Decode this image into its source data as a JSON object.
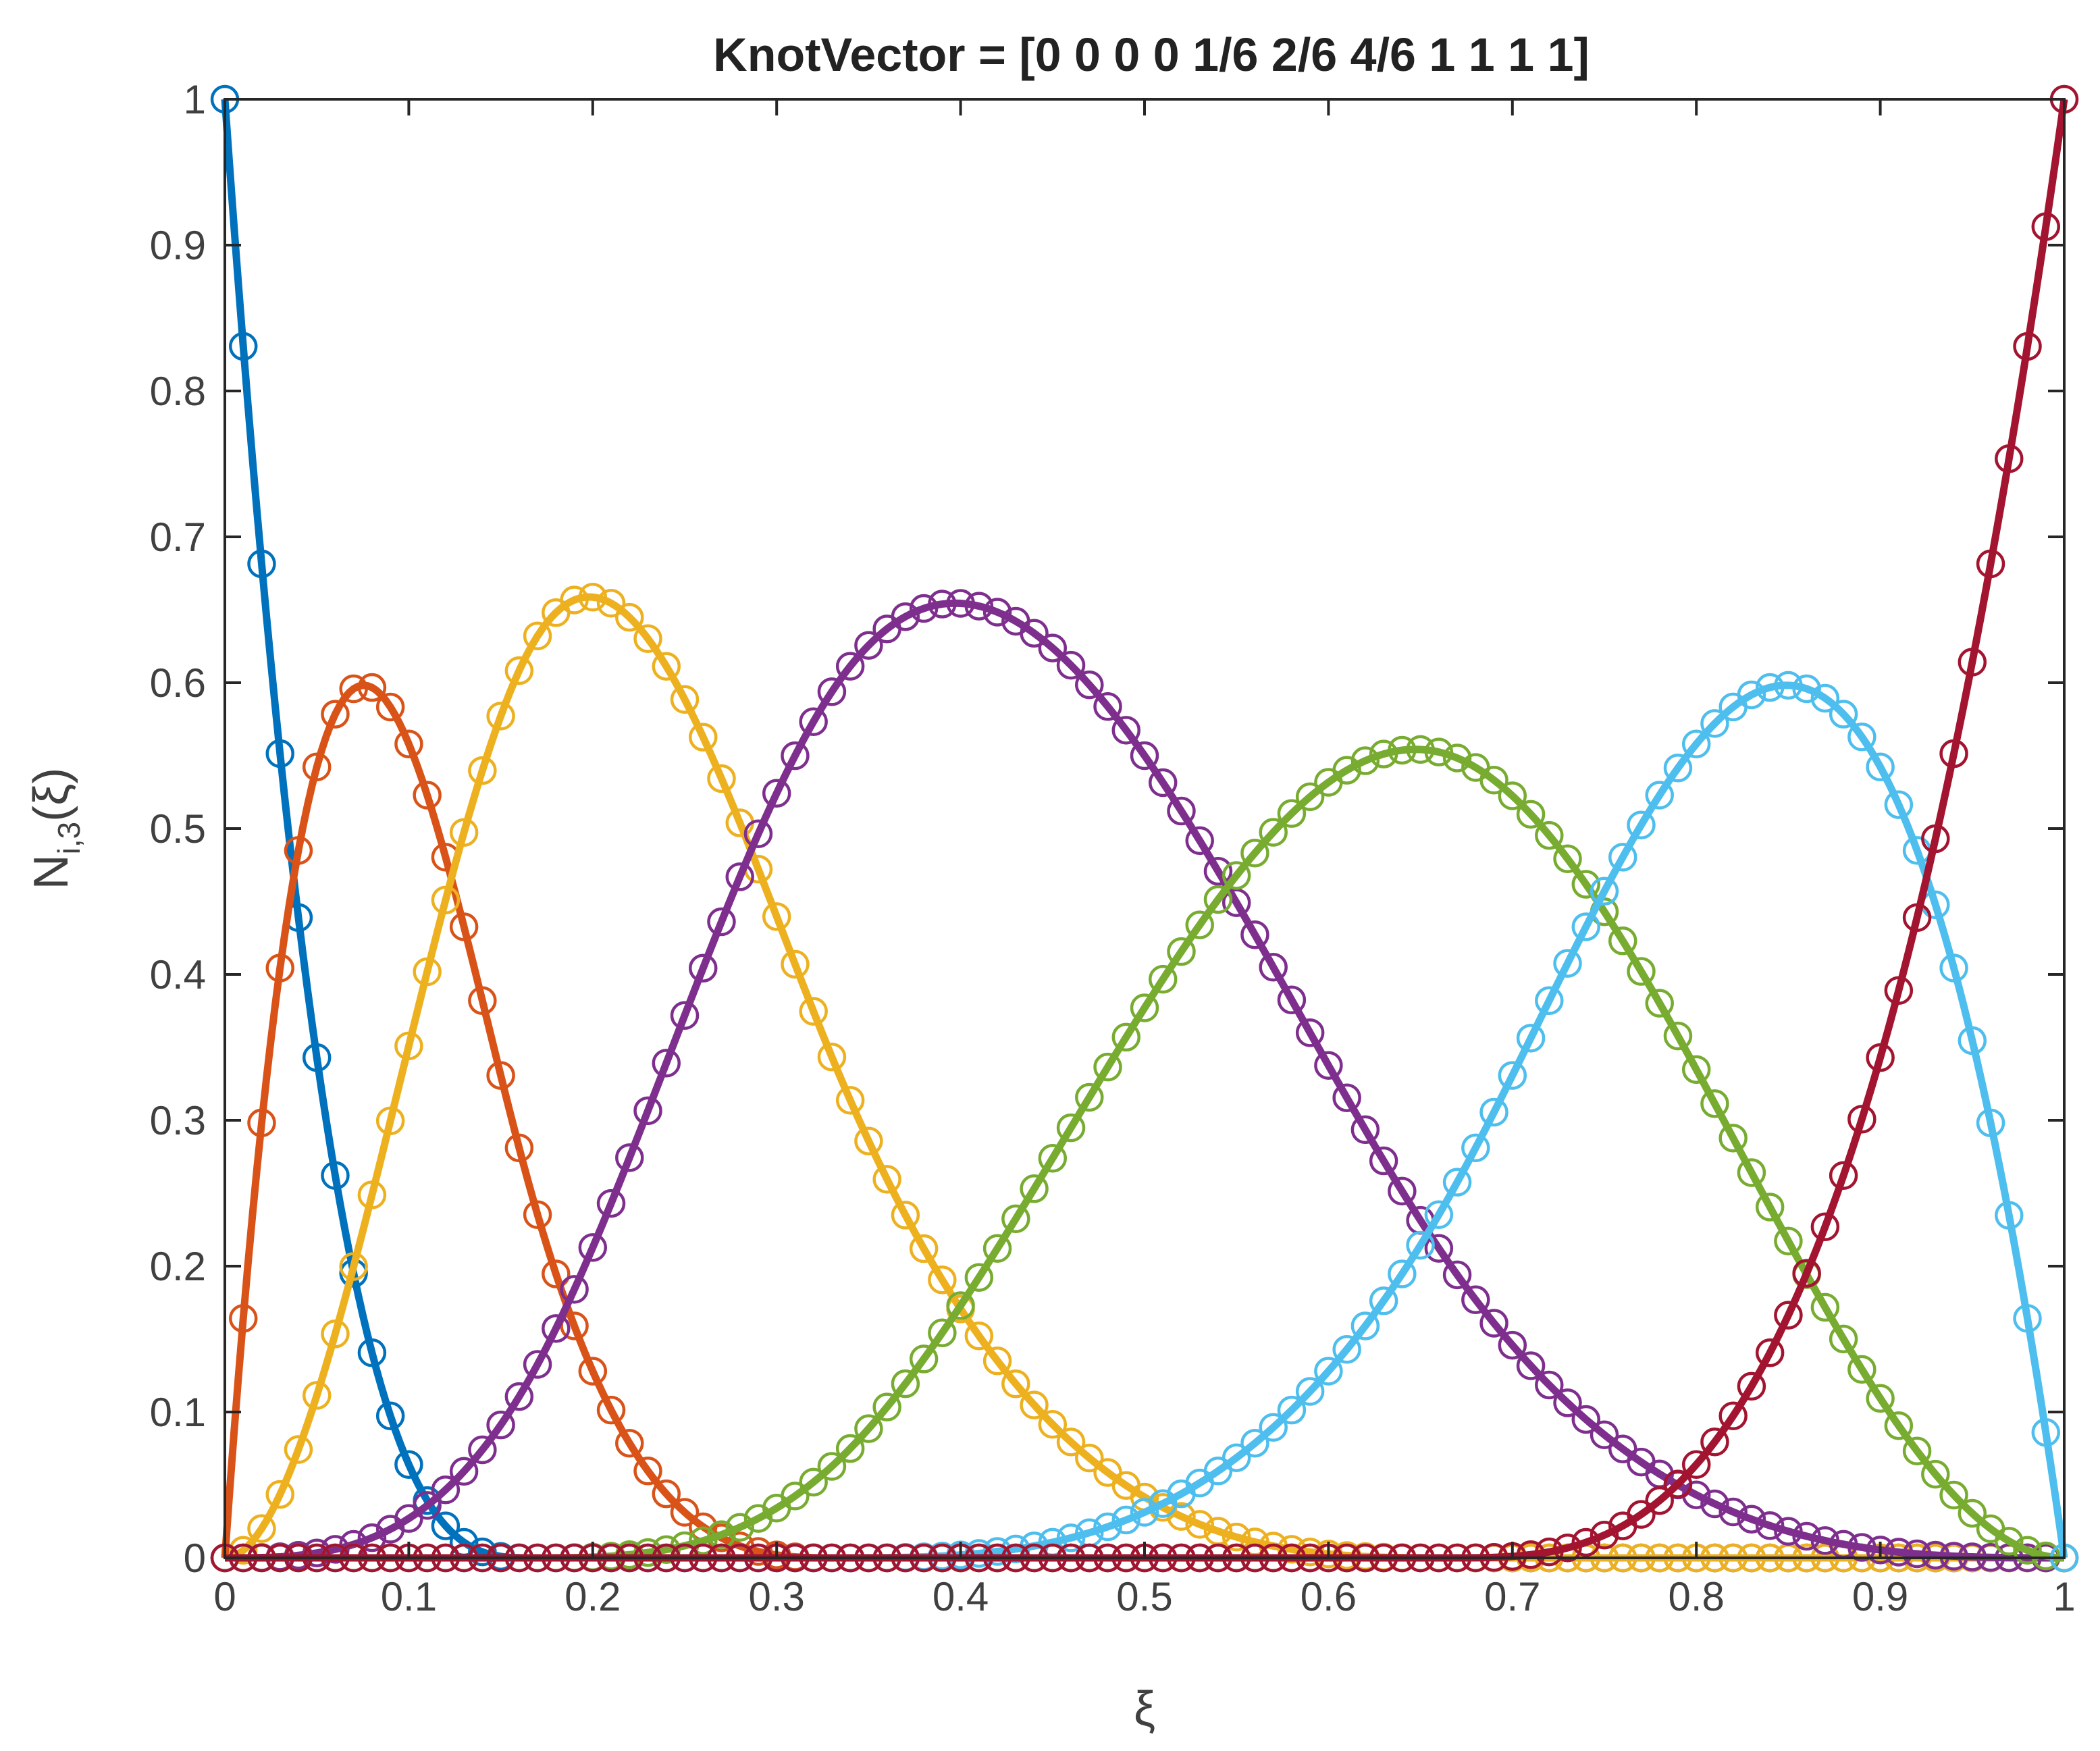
{
  "chart_data": {
    "type": "line",
    "title": "KnotVector = [0 0 0 0 1/6 2/6 4/6 1 1 1 1]",
    "xlabel": "ξ",
    "ylabel": {
      "main": "N",
      "sub": "i,3",
      "suffix": "(ξ)"
    },
    "xlim": [
      0,
      1
    ],
    "ylim": [
      0,
      1
    ],
    "xticks": [
      "0",
      "0.1",
      "0.2",
      "0.3",
      "0.4",
      "0.5",
      "0.6",
      "0.7",
      "0.8",
      "0.9",
      "1"
    ],
    "yticks": [
      "0",
      "0.1",
      "0.2",
      "0.3",
      "0.4",
      "0.5",
      "0.6",
      "0.7",
      "0.8",
      "0.9",
      "1"
    ],
    "knot_vector": [
      0,
      0,
      0,
      0,
      0.16667,
      0.33333,
      0.66667,
      1,
      1,
      1,
      1
    ],
    "degree": 3,
    "grid": false,
    "markers": "circle",
    "series_colors": [
      "#0072BD",
      "#D95319",
      "#EDB120",
      "#7E2F8E",
      "#77AC30",
      "#4DBEEE",
      "#A2142F"
    ],
    "series": [
      {
        "x": [
          0,
          0.02,
          0.04,
          0.06,
          0.08,
          0.1,
          0.12,
          0.14,
          0.16,
          0.18,
          0.2
        ],
        "values": [
          1.0,
          0.681,
          0.44,
          0.262,
          0.142,
          0.063,
          0.022,
          0.005,
          0.0,
          0.0,
          0.0
        ]
      },
      {
        "x": [
          0,
          0.025,
          0.05,
          0.075,
          0.1,
          0.125,
          0.15,
          0.175,
          0.2,
          0.25,
          0.3
        ],
        "values": [
          0.0,
          0.405,
          0.542,
          0.595,
          0.538,
          0.426,
          0.3,
          0.2,
          0.12,
          0.03,
          0.0
        ]
      },
      {
        "x": [
          0,
          0.05,
          0.1,
          0.15,
          0.2,
          0.25,
          0.3,
          0.35,
          0.4,
          0.5,
          0.6
        ],
        "values": [
          0.0,
          0.11,
          0.4,
          0.6,
          0.66,
          0.6,
          0.44,
          0.3,
          0.18,
          0.04,
          0.0
        ]
      },
      {
        "x": [
          0,
          0.1,
          0.2,
          0.3,
          0.35,
          0.4,
          0.45,
          0.5,
          0.6,
          0.7,
          0.8
        ],
        "values": [
          0.0,
          0.03,
          0.2,
          0.48,
          0.6,
          0.66,
          0.63,
          0.55,
          0.31,
          0.14,
          0.05
        ]
      },
      {
        "x": [
          0.167,
          0.25,
          0.333,
          0.4,
          0.5,
          0.6,
          0.65,
          0.7,
          0.8,
          0.9,
          1.0
        ],
        "values": [
          0.0,
          0.01,
          0.06,
          0.18,
          0.4,
          0.54,
          0.555,
          0.53,
          0.35,
          0.11,
          0.0
        ]
      },
      {
        "x": [
          0.333,
          0.4,
          0.5,
          0.6,
          0.65,
          0.7,
          0.75,
          0.8,
          0.85,
          0.9,
          1.0
        ],
        "values": [
          0.0,
          0.004,
          0.04,
          0.14,
          0.22,
          0.33,
          0.45,
          0.56,
          0.6,
          0.52,
          0.0
        ]
      },
      {
        "x": [
          0.667,
          0.7,
          0.75,
          0.8,
          0.85,
          0.9,
          0.925,
          0.95,
          0.975,
          1.0
        ],
        "values": [
          0.0,
          0.003,
          0.021,
          0.07,
          0.17,
          0.33,
          0.44,
          0.58,
          0.77,
          1.0
        ]
      }
    ]
  }
}
